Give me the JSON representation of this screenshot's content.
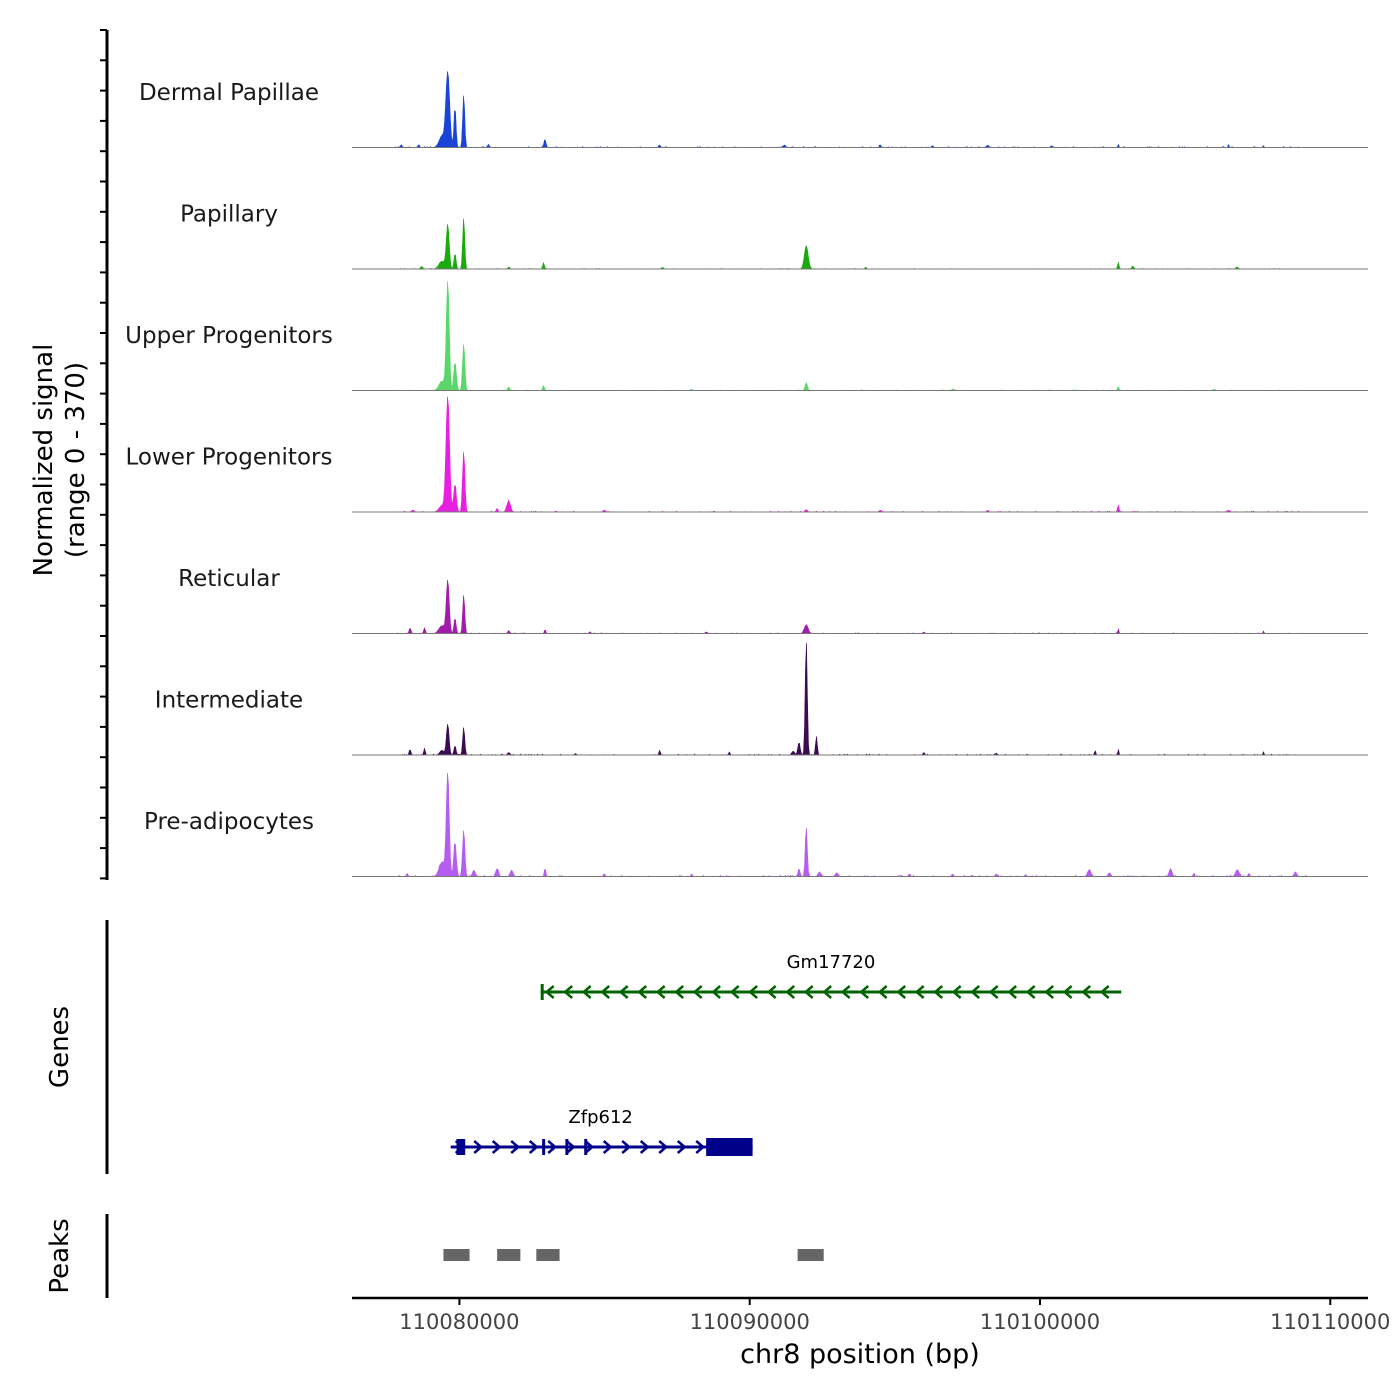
{
  "chart_data": {
    "type": "genome-coverage",
    "ylabel_line1": "Normalized signal",
    "ylabel_line2": "(range 0 - 370)",
    "y_range": [
      0,
      370
    ],
    "xlabel": "chr8 position (bp)",
    "x_range": [
      110076300,
      110111300
    ],
    "x_ticks": [
      {
        "value": 110080000,
        "label": "110080000"
      },
      {
        "value": 110090000,
        "label": "110090000"
      },
      {
        "value": 110100000,
        "label": "110100000"
      },
      {
        "value": 110110000,
        "label": "110110000"
      }
    ],
    "tracks": [
      {
        "name": "Dermal Papillae",
        "color": "#1a44d6",
        "peaks": [
          [
            110079600,
            240,
            130
          ],
          [
            110079850,
            130,
            70
          ],
          [
            110080150,
            170,
            70
          ],
          [
            110079400,
            35,
            200
          ],
          [
            110082950,
            25,
            70
          ],
          [
            110078000,
            9,
            60
          ],
          [
            110078600,
            9,
            60
          ],
          [
            110081000,
            8,
            80
          ],
          [
            110086900,
            8,
            60
          ],
          [
            110091200,
            8,
            80
          ],
          [
            110094500,
            8,
            60
          ],
          [
            110096300,
            6,
            60
          ],
          [
            110098200,
            8,
            60
          ],
          [
            110100400,
            6,
            60
          ],
          [
            110102700,
            10,
            40
          ],
          [
            110106500,
            9,
            40
          ],
          [
            110107700,
            6,
            40
          ]
        ],
        "noise": 3,
        "extent": [
          110077800,
          110109200
        ]
      },
      {
        "name": "Papillary",
        "color": "#1aaa0e",
        "peaks": [
          [
            110079600,
            140,
            100
          ],
          [
            110080150,
            165,
            70
          ],
          [
            110079850,
            50,
            70
          ],
          [
            110079400,
            25,
            200
          ],
          [
            110091950,
            75,
            130
          ],
          [
            110082900,
            20,
            60
          ],
          [
            110078700,
            8,
            80
          ],
          [
            110081700,
            6,
            60
          ],
          [
            110102700,
            22,
            50
          ],
          [
            110103200,
            8,
            80
          ],
          [
            110087000,
            5,
            80
          ],
          [
            110094000,
            5,
            60
          ],
          [
            110106800,
            5,
            80
          ]
        ],
        "noise": 2,
        "extent": [
          110077800,
          110109200
        ]
      },
      {
        "name": "Upper Progenitors",
        "color": "#5cd66a",
        "peaks": [
          [
            110079600,
            350,
            100
          ],
          [
            110080150,
            150,
            80
          ],
          [
            110079850,
            90,
            90
          ],
          [
            110079400,
            30,
            200
          ],
          [
            110081700,
            10,
            80
          ],
          [
            110082900,
            15,
            60
          ],
          [
            110091950,
            25,
            80
          ],
          [
            110102700,
            12,
            50
          ],
          [
            110097000,
            4,
            80
          ],
          [
            110088000,
            4,
            80
          ],
          [
            110106000,
            4,
            80
          ]
        ],
        "noise": 2,
        "extent": [
          110077800,
          110109200
        ]
      },
      {
        "name": "Lower Progenitors",
        "color": "#e81ee0",
        "peaks": [
          [
            110079600,
            370,
            120
          ],
          [
            110080150,
            195,
            80
          ],
          [
            110079850,
            90,
            90
          ],
          [
            110079400,
            20,
            200
          ],
          [
            110081700,
            35,
            120
          ],
          [
            110081300,
            12,
            60
          ],
          [
            110102700,
            22,
            50
          ],
          [
            110091950,
            8,
            80
          ],
          [
            110085000,
            6,
            80
          ],
          [
            110094500,
            6,
            80
          ],
          [
            110098200,
            6,
            60
          ],
          [
            110078400,
            6,
            80
          ],
          [
            110106500,
            6,
            60
          ]
        ],
        "noise": 3,
        "extent": [
          110077800,
          110109200
        ]
      },
      {
        "name": "Reticular",
        "color": "#a11caa",
        "peaks": [
          [
            110079600,
            170,
            100
          ],
          [
            110080150,
            125,
            70
          ],
          [
            110079850,
            50,
            70
          ],
          [
            110079400,
            25,
            200
          ],
          [
            110091950,
            28,
            130
          ],
          [
            110078300,
            18,
            60
          ],
          [
            110078800,
            18,
            60
          ],
          [
            110081700,
            10,
            60
          ],
          [
            110082950,
            15,
            40
          ],
          [
            110102700,
            15,
            40
          ],
          [
            110107700,
            8,
            40
          ],
          [
            110084500,
            5,
            60
          ],
          [
            110088500,
            5,
            60
          ],
          [
            110096000,
            5,
            60
          ]
        ],
        "noise": 2,
        "extent": [
          110077800,
          110109200
        ]
      },
      {
        "name": "Intermediate",
        "color": "#3a0a55",
        "peaks": [
          [
            110091950,
            370,
            70
          ],
          [
            110091700,
            40,
            80
          ],
          [
            110092300,
            60,
            60
          ],
          [
            110091500,
            12,
            100
          ],
          [
            110079600,
            100,
            90
          ],
          [
            110080150,
            90,
            70
          ],
          [
            110079850,
            30,
            70
          ],
          [
            110079400,
            15,
            150
          ],
          [
            110078300,
            18,
            60
          ],
          [
            110078800,
            22,
            50
          ],
          [
            110086900,
            15,
            50
          ],
          [
            110089300,
            10,
            50
          ],
          [
            110081700,
            8,
            80
          ],
          [
            110101900,
            14,
            40
          ],
          [
            110102700,
            18,
            40
          ],
          [
            110107700,
            10,
            40
          ],
          [
            110096000,
            8,
            60
          ],
          [
            110084000,
            5,
            60
          ],
          [
            110098500,
            6,
            60
          ]
        ],
        "noise": 3,
        "extent": [
          110077800,
          110109200
        ]
      },
      {
        "name": "Pre-adipocytes",
        "color": "#b65cf0",
        "peaks": [
          [
            110079600,
            330,
            100
          ],
          [
            110080150,
            150,
            80
          ],
          [
            110079850,
            110,
            90
          ],
          [
            110079400,
            45,
            200
          ],
          [
            110080500,
            20,
            100
          ],
          [
            110081300,
            25,
            100
          ],
          [
            110081800,
            20,
            100
          ],
          [
            110082950,
            28,
            50
          ],
          [
            110091950,
            160,
            70
          ],
          [
            110091700,
            25,
            70
          ],
          [
            110092400,
            15,
            90
          ],
          [
            110093000,
            12,
            100
          ],
          [
            110101700,
            22,
            120
          ],
          [
            110102400,
            12,
            80
          ],
          [
            110104500,
            25,
            100
          ],
          [
            110106800,
            22,
            120
          ],
          [
            110108800,
            15,
            90
          ],
          [
            110078200,
            10,
            60
          ],
          [
            110085000,
            8,
            60
          ],
          [
            110088000,
            8,
            60
          ],
          [
            110095500,
            8,
            60
          ],
          [
            110097000,
            8,
            60
          ],
          [
            110098500,
            8,
            60
          ],
          [
            110099500,
            6,
            60
          ],
          [
            110105300,
            8,
            60
          ],
          [
            110107200,
            10,
            60
          ]
        ],
        "noise": 4,
        "extent": [
          110077800,
          110109200
        ]
      }
    ],
    "genes_label": "Genes",
    "genes": [
      {
        "name": "Gm17720",
        "strand": "-",
        "start": 110082800,
        "end": 110102800,
        "color": "#006400",
        "exons": [
          [
            110082800,
            110082880
          ]
        ]
      },
      {
        "name": "Zfp612",
        "strand": "+",
        "start": 110079700,
        "end": 110090100,
        "color": "#00008b",
        "exons": [
          [
            110079900,
            110080200
          ],
          [
            110082850,
            110082900
          ],
          [
            110083650,
            110083720
          ],
          [
            110084300,
            110084370
          ],
          [
            110088500,
            110090100
          ]
        ]
      }
    ],
    "peaks_label": "Peaks",
    "peaks": [
      [
        110079450,
        110080350
      ],
      [
        110081300,
        110082100
      ],
      [
        110082650,
        110083450
      ],
      [
        110091650,
        110092550
      ]
    ],
    "peak_color": "#666666"
  }
}
